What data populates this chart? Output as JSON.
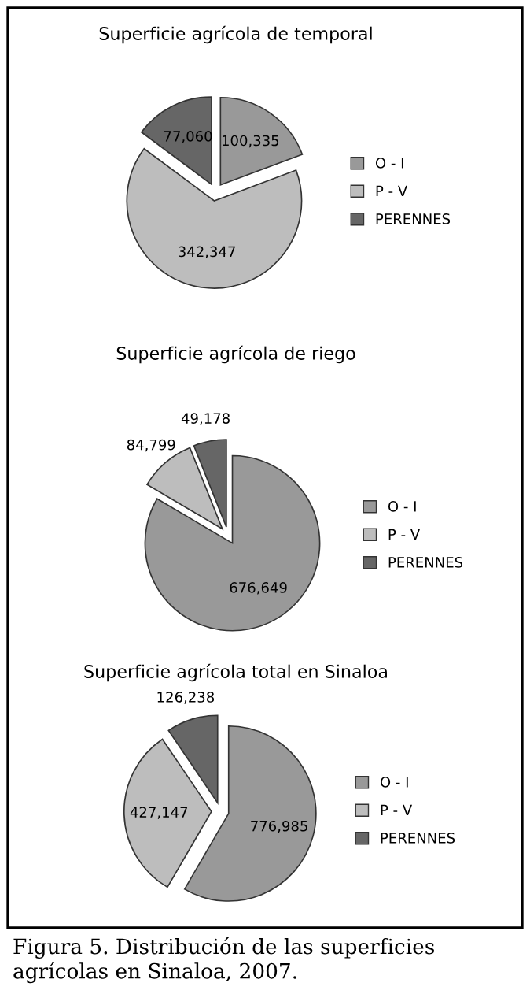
{
  "chart_data": [
    {
      "type": "pie",
      "title": "Superficie agrícola de temporal",
      "categories": [
        "O - I",
        "P - V",
        "PERENNES"
      ],
      "values": [
        100335,
        342347,
        77060
      ],
      "colors": [
        "#999999",
        "#bdbdbd",
        "#666666"
      ],
      "value_labels": [
        "100,335",
        "342,347",
        "77,060"
      ],
      "legend": "right"
    },
    {
      "type": "pie",
      "title": "Superficie agrícola de riego",
      "categories": [
        "O - I",
        "P - V",
        "PERENNES"
      ],
      "values": [
        676649,
        84799,
        49178
      ],
      "colors": [
        "#999999",
        "#bdbdbd",
        "#666666"
      ],
      "value_labels": [
        "676,649",
        "84,799",
        "49,178"
      ],
      "legend": "right"
    },
    {
      "type": "pie",
      "title": "Superficie agrícola total en Sinaloa",
      "categories": [
        "O - I",
        "P - V",
        "PERENNES"
      ],
      "values": [
        776985,
        427147,
        126238
      ],
      "colors": [
        "#999999",
        "#bdbdbd",
        "#666666"
      ],
      "value_labels": [
        "776,985",
        "427,147",
        "126,238"
      ],
      "legend": "right",
      "annotations": [
        "Figura 5. Distribución de las superficies agrícolas en Sinaloa, 2007."
      ]
    }
  ]
}
